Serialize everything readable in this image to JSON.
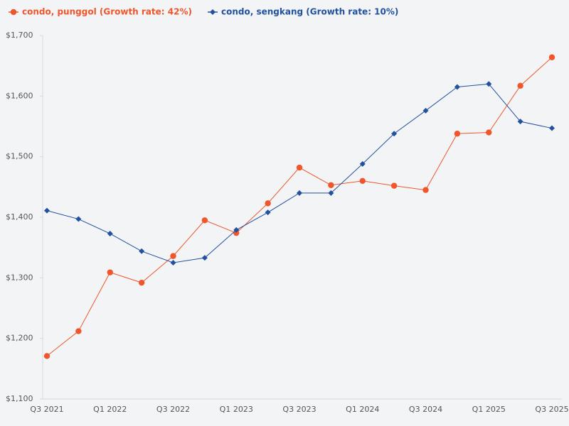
{
  "chart_data": {
    "type": "line",
    "categories": [
      "Q3 2021",
      null,
      "Q1 2022",
      null,
      "Q3 2022",
      null,
      "Q1 2023",
      null,
      "Q3 2023",
      null,
      "Q1 2024",
      null,
      "Q3 2024",
      null,
      "Q1 2025",
      null,
      "Q3 2025"
    ],
    "series": [
      {
        "name": "condo, punggol (Growth rate: 42%)",
        "color": "#f0562b",
        "marker": "circle",
        "values": [
          1171,
          1212,
          1309,
          1292,
          1336,
          1395,
          1374,
          1423,
          1482,
          1453,
          1460,
          1452,
          1445,
          1538,
          1540,
          1617,
          1664
        ]
      },
      {
        "name": "condo, sengkang (Growth rate: 10%)",
        "color": "#22519e",
        "marker": "diamond",
        "values": [
          1411,
          1397,
          1373,
          1344,
          1325,
          1333,
          1379,
          1408,
          1440,
          1440,
          1488,
          1538,
          1576,
          1615,
          1620,
          1558,
          1547
        ]
      }
    ],
    "ylim": [
      1100,
      1700
    ],
    "yticks": [
      {
        "value": 1100,
        "label": "$1,100"
      },
      {
        "value": 1200,
        "label": "$1,200"
      },
      {
        "value": 1300,
        "label": "$1,300"
      },
      {
        "value": 1400,
        "label": "$1,400"
      },
      {
        "value": 1500,
        "label": "$1,500"
      },
      {
        "value": 1600,
        "label": "$1,600"
      },
      {
        "value": 1700,
        "label": "$1,700"
      }
    ],
    "grid": false,
    "legend": "top"
  }
}
